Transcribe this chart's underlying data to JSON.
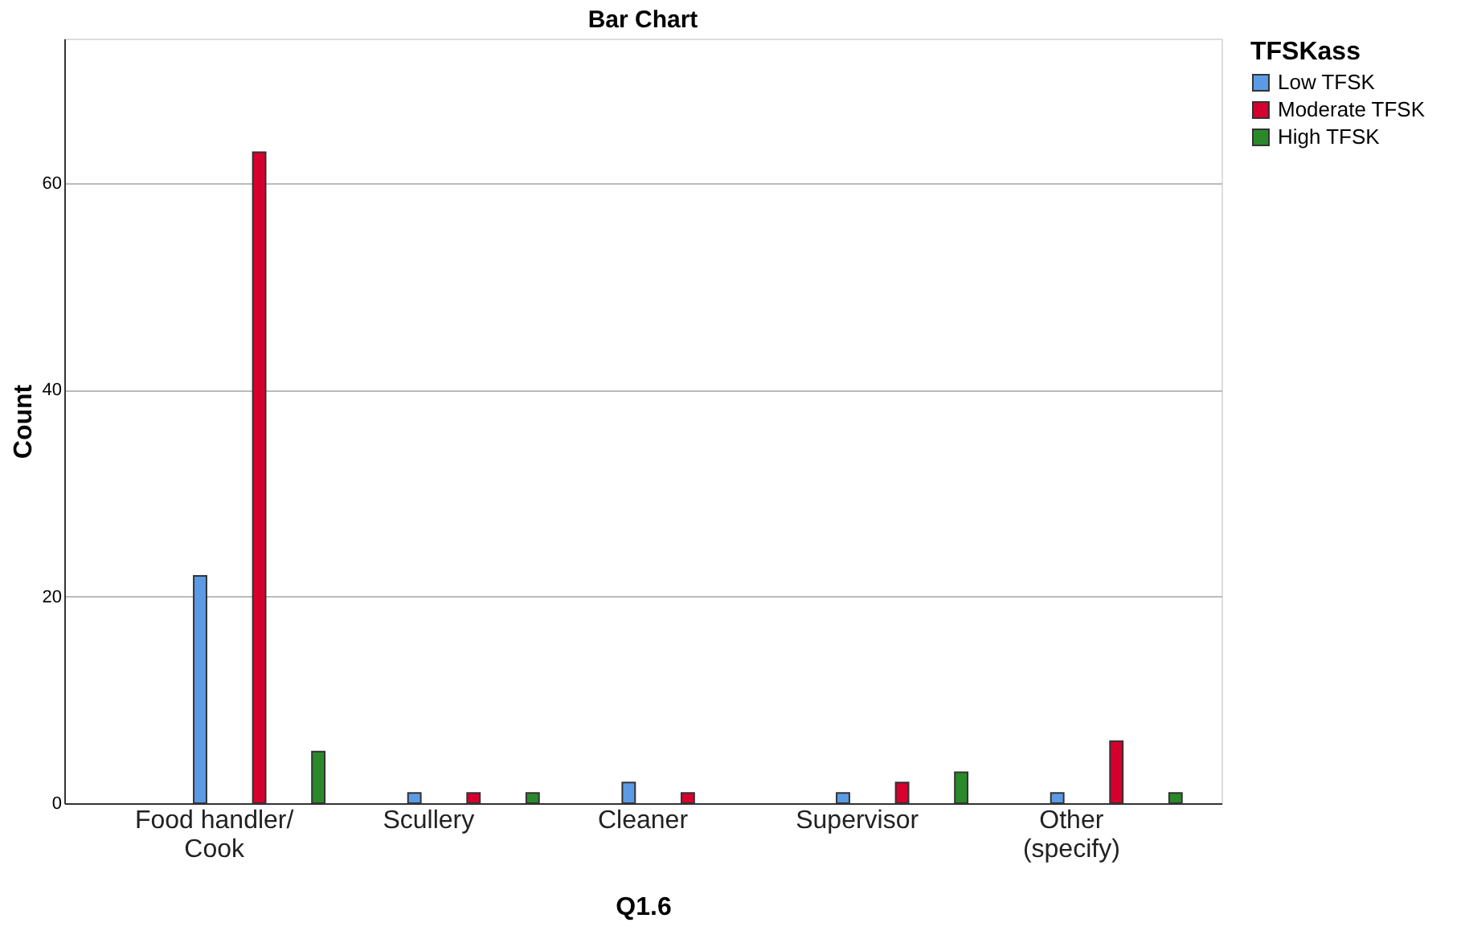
{
  "chart_data": {
    "type": "bar",
    "title": "Bar Chart",
    "xlabel": "Q1.6",
    "ylabel": "Count",
    "legend_title": "TFSKass",
    "categories": [
      "Food handler/\nCook",
      "Scullery",
      "Cleaner",
      "Supervisor",
      "Other\n(specify)"
    ],
    "series": [
      {
        "name": "Low TFSK",
        "color": "#5b9be6",
        "values": [
          22,
          1,
          2,
          1,
          1
        ]
      },
      {
        "name": "Moderate TFSK",
        "color": "#d6002e",
        "values": [
          63,
          1,
          1,
          2,
          6
        ]
      },
      {
        "name": "High TFSK",
        "color": "#2a8a2a",
        "values": [
          5,
          1,
          null,
          3,
          1
        ]
      }
    ],
    "ylim": [
      0,
      74
    ],
    "yticks": [
      0,
      20,
      40,
      60
    ],
    "grid": "y",
    "legend": "top right"
  }
}
